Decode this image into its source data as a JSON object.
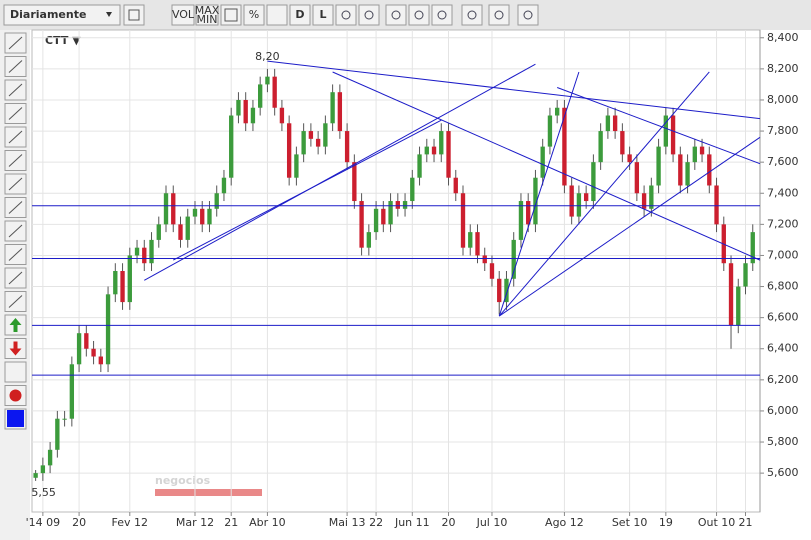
{
  "toolbar": {
    "period": "Diariamente",
    "buttons": [
      "VOL",
      "MAX",
      "MIN",
      "%",
      "D",
      "L"
    ]
  },
  "chart_data": {
    "type": "candlestick",
    "ticker": "CTT ▼",
    "watermark": "negocios",
    "up_color": "#3c9b3c",
    "down_color": "#cc1f2f",
    "line_color": "#1c1cc8",
    "grid": true,
    "xlim": [
      -0.5,
      100
    ],
    "ylim": [
      5350,
      8450
    ],
    "xticks": [
      {
        "value": 1,
        "label": "'14 09"
      },
      {
        "value": 6,
        "label": "20"
      },
      {
        "value": 13,
        "label": "Fev 12"
      },
      {
        "value": 22,
        "label": "Mar 12"
      },
      {
        "value": 27,
        "label": "21"
      },
      {
        "value": 32,
        "label": "Abr 10"
      },
      {
        "value": 43,
        "label": "Mai 13"
      },
      {
        "value": 47,
        "label": "22"
      },
      {
        "value": 52,
        "label": "Jun 11"
      },
      {
        "value": 57,
        "label": "20"
      },
      {
        "value": 63,
        "label": "Jul 10"
      },
      {
        "value": 73,
        "label": "Ago 12"
      },
      {
        "value": 82,
        "label": "Set 10"
      },
      {
        "value": 87,
        "label": "19"
      },
      {
        "value": 94,
        "label": "Out 10"
      },
      {
        "value": 98,
        "label": "21"
      }
    ],
    "yticks": [
      {
        "value": 5600,
        "label": "5,600"
      },
      {
        "value": 5800,
        "label": "5,800"
      },
      {
        "value": 6000,
        "label": "6,000"
      },
      {
        "value": 6200,
        "label": "6,200"
      },
      {
        "value": 6400,
        "label": "6,400"
      },
      {
        "value": 6600,
        "label": "6,600"
      },
      {
        "value": 6800,
        "label": "6,800"
      },
      {
        "value": 7000,
        "label": "7,000"
      },
      {
        "value": 7200,
        "label": "7,200"
      },
      {
        "value": 7400,
        "label": "7,400"
      },
      {
        "value": 7600,
        "label": "7,600"
      },
      {
        "value": 7800,
        "label": "7,800"
      },
      {
        "value": 8000,
        "label": "8,000"
      },
      {
        "value": 8200,
        "label": "8,200"
      },
      {
        "value": 8400,
        "label": "8,400"
      }
    ],
    "open": [
      5570,
      5600,
      5650,
      5750,
      5950,
      5950,
      6300,
      6500,
      6400,
      6350,
      6300,
      6750,
      6900,
      6700,
      7000,
      7050,
      6950,
      7100,
      7200,
      7400,
      7200,
      7100,
      7250,
      7300,
      7200,
      7300,
      7400,
      7500,
      7900,
      8000,
      7850,
      7950,
      8100,
      8150,
      7950,
      7850,
      7500,
      7650,
      7800,
      7750,
      7700,
      7850,
      8050,
      7800,
      7600,
      7350,
      7050,
      7150,
      7300,
      7200,
      7350,
      7300,
      7350,
      7500,
      7650,
      7700,
      7650,
      7800,
      7500,
      7400,
      7050,
      7150,
      7000,
      6950,
      6850,
      6700,
      6850,
      7100,
      7350,
      7200,
      7500,
      7700,
      7900,
      7950,
      7450,
      7250,
      7400,
      7350,
      7600,
      7800,
      7900,
      7800,
      7650,
      7600,
      7400,
      7300,
      7450,
      7700,
      7900,
      7650,
      7450,
      7600,
      7700,
      7650,
      7450,
      7200,
      6950,
      6550,
      6800,
      6950
    ],
    "high": [
      5620,
      5700,
      5800,
      6000,
      6000,
      6350,
      6550,
      6550,
      6450,
      6400,
      6800,
      6950,
      6950,
      7050,
      7100,
      7100,
      7150,
      7250,
      7450,
      7450,
      7250,
      7300,
      7350,
      7350,
      7350,
      7450,
      7550,
      7950,
      8050,
      8050,
      8000,
      8150,
      8200,
      8200,
      8000,
      7900,
      7700,
      7850,
      7850,
      7800,
      7900,
      8100,
      8100,
      7850,
      7650,
      7400,
      7200,
      7350,
      7350,
      7400,
      7400,
      7400,
      7550,
      7700,
      7750,
      7750,
      7850,
      7850,
      7550,
      7450,
      7200,
      7200,
      7050,
      7000,
      6900,
      6900,
      7150,
      7400,
      7400,
      7550,
      7750,
      7950,
      8000,
      8000,
      7500,
      7450,
      7450,
      7650,
      7850,
      7950,
      7950,
      7850,
      7700,
      7650,
      7450,
      7500,
      7750,
      7950,
      7950,
      7700,
      7650,
      7750,
      7750,
      7700,
      7500,
      7250,
      7000,
      6850,
      7000,
      7200
    ],
    "low": [
      5550,
      5550,
      5600,
      5700,
      5900,
      5900,
      6250,
      6350,
      6300,
      6250,
      6250,
      6700,
      6650,
      6650,
      6950,
      6900,
      6900,
      7050,
      7150,
      7150,
      7050,
      7050,
      7200,
      7150,
      7150,
      7250,
      7350,
      7450,
      7850,
      7800,
      7800,
      7900,
      8050,
      7900,
      7800,
      7450,
      7450,
      7600,
      7700,
      7650,
      7650,
      7800,
      7750,
      7550,
      7300,
      7000,
      7000,
      7100,
      7150,
      7150,
      7250,
      7250,
      7300,
      7450,
      7600,
      7600,
      7600,
      7450,
      7350,
      7000,
      7000,
      6950,
      6900,
      6800,
      6620,
      6650,
      6800,
      7050,
      7150,
      7150,
      7450,
      7650,
      7850,
      7400,
      7200,
      7200,
      7300,
      7300,
      7550,
      7750,
      7750,
      7600,
      7550,
      7350,
      7250,
      7250,
      7400,
      7650,
      7600,
      7400,
      7400,
      7550,
      7600,
      7400,
      7150,
      6900,
      6400,
      6500,
      6750,
      6900
    ],
    "close": [
      5600,
      5650,
      5750,
      5950,
      5950,
      6300,
      6500,
      6400,
      6350,
      6300,
      6750,
      6900,
      6700,
      7000,
      7050,
      6950,
      7100,
      7200,
      7400,
      7200,
      7100,
      7250,
      7300,
      7200,
      7300,
      7400,
      7500,
      7900,
      8000,
      7850,
      7950,
      8100,
      8150,
      7950,
      7850,
      7500,
      7650,
      7800,
      7750,
      7700,
      7850,
      8050,
      7800,
      7600,
      7350,
      7050,
      7150,
      7300,
      7200,
      7350,
      7300,
      7350,
      7500,
      7650,
      7700,
      7650,
      7800,
      7500,
      7400,
      7050,
      7150,
      7000,
      6950,
      6850,
      6700,
      6850,
      7100,
      7350,
      7200,
      7500,
      7700,
      7900,
      7950,
      7450,
      7250,
      7400,
      7350,
      7600,
      7800,
      7900,
      7800,
      7650,
      7600,
      7400,
      7300,
      7450,
      7700,
      7900,
      7650,
      7450,
      7600,
      7700,
      7650,
      7450,
      7200,
      6950,
      6550,
      6800,
      6950,
      7150
    ],
    "hlines": [
      7320,
      6980,
      6550,
      6230
    ],
    "trendlines": [
      {
        "x": [
          15,
          69
        ],
        "y": [
          6840,
          8230
        ]
      },
      {
        "x": [
          19,
          56
        ],
        "y": [
          6970,
          7870
        ]
      },
      {
        "x": [
          32,
          100
        ],
        "y": [
          8250,
          7880
        ]
      },
      {
        "x": [
          41,
          100
        ],
        "y": [
          8180,
          6970
        ]
      },
      {
        "x": [
          72,
          100
        ],
        "y": [
          8080,
          7590
        ]
      },
      {
        "x": [
          64,
          75
        ],
        "y": [
          6610,
          8180
        ]
      },
      {
        "x": [
          64,
          93
        ],
        "y": [
          6610,
          8180
        ]
      },
      {
        "x": [
          64,
          100
        ],
        "y": [
          6610,
          7760
        ]
      }
    ],
    "annotations": [
      {
        "text": "8,20",
        "x": 32,
        "y": 8200
      },
      {
        "text": "5,55",
        "x": 0,
        "y": 5550
      }
    ]
  }
}
